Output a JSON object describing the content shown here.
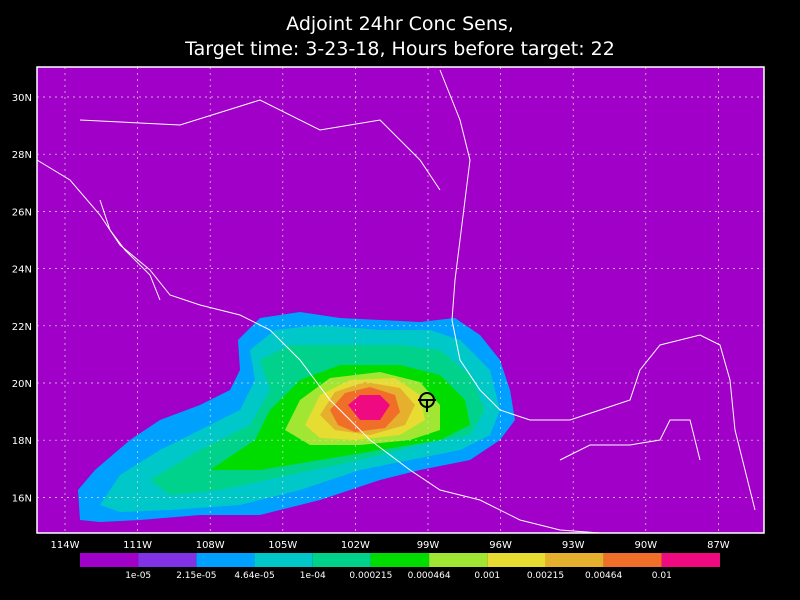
{
  "title": [
    "Adjoint 24hr Conc Sens,",
    "Target time: 3-23-18, Hours before target: 22"
  ],
  "lat_labels": [
    "30N",
    "28N",
    "26N",
    "24N",
    "22N",
    "20N",
    "18N",
    "16N"
  ],
  "lon_labels": [
    "114W",
    "111W",
    "108W",
    "105W",
    "102W",
    "99W",
    "96W",
    "93W",
    "90W",
    "87W"
  ],
  "colorbar": {
    "colors": [
      "#a000c8",
      "#8232e6",
      "#00a0ff",
      "#00c8c8",
      "#00d28c",
      "#00dc00",
      "#a0e632",
      "#e6dc32",
      "#e6af2d",
      "#f06e28",
      "#f00a82"
    ],
    "labels": [
      "1e-05",
      "2.15e-05",
      "4.64e-05",
      "1e-04",
      "0.000215",
      "0.000464",
      "0.001",
      "0.00215",
      "0.00464",
      "0.01"
    ]
  }
}
